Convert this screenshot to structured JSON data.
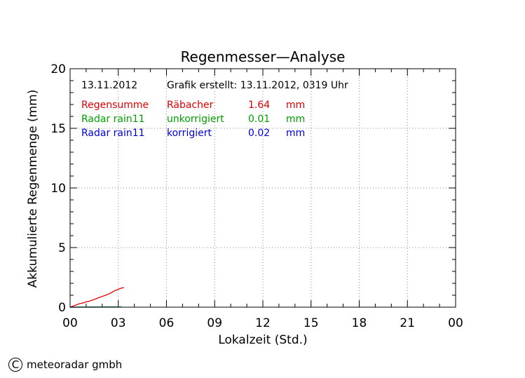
{
  "chart_data": {
    "type": "line",
    "title": "Regenmesser—Analyse",
    "xlabel": "Lokalzeit (Std.)",
    "ylabel": "Akkumulierte Regenmenge (mm)",
    "xlim": [
      0,
      24
    ],
    "ylim": [
      0,
      20
    ],
    "x_ticks": [
      "00",
      "03",
      "06",
      "09",
      "12",
      "15",
      "18",
      "21",
      "00"
    ],
    "y_ticks": [
      "0",
      "5",
      "10",
      "15",
      "20"
    ],
    "grid": true,
    "info": {
      "date": "13.11.2012",
      "created": "Grafik erstellt: 13.11.2012, 0319 Uhr"
    },
    "legend": [
      {
        "name": "Regensumme Räbacher",
        "value": "1.64",
        "unit": "mm",
        "color": "#dd0000"
      },
      {
        "name": "Radar rain11 unkorrigiert",
        "value": "0.01",
        "unit": "mm",
        "color": "#00a000"
      },
      {
        "name": "Radar rain11 korrigiert",
        "value": "0.02",
        "unit": "mm",
        "color": "#0000dd"
      }
    ],
    "series": [
      {
        "name": "Regensumme Räbacher",
        "color": "#dd0000",
        "x": [
          0.0,
          0.2,
          0.4,
          0.6,
          0.8,
          1.0,
          1.2,
          1.4,
          1.6,
          1.8,
          2.0,
          2.2,
          2.4,
          2.6,
          2.8,
          3.0,
          3.2,
          3.35
        ],
        "y": [
          0.0,
          0.1,
          0.2,
          0.3,
          0.35,
          0.45,
          0.5,
          0.6,
          0.7,
          0.8,
          0.9,
          1.0,
          1.1,
          1.25,
          1.4,
          1.5,
          1.6,
          1.64
        ]
      },
      {
        "name": "Radar rain11 unkorrigiert",
        "color": "#00a000",
        "x": [
          0.0,
          3.2
        ],
        "y": [
          0.0,
          0.01
        ]
      },
      {
        "name": "Radar rain11 korrigiert",
        "color": "#0000dd",
        "x": [
          0.0,
          3.2
        ],
        "y": [
          0.0,
          0.02
        ]
      }
    ]
  },
  "footer": {
    "copyright_symbol": "C",
    "company": "meteoradar gmbh"
  }
}
